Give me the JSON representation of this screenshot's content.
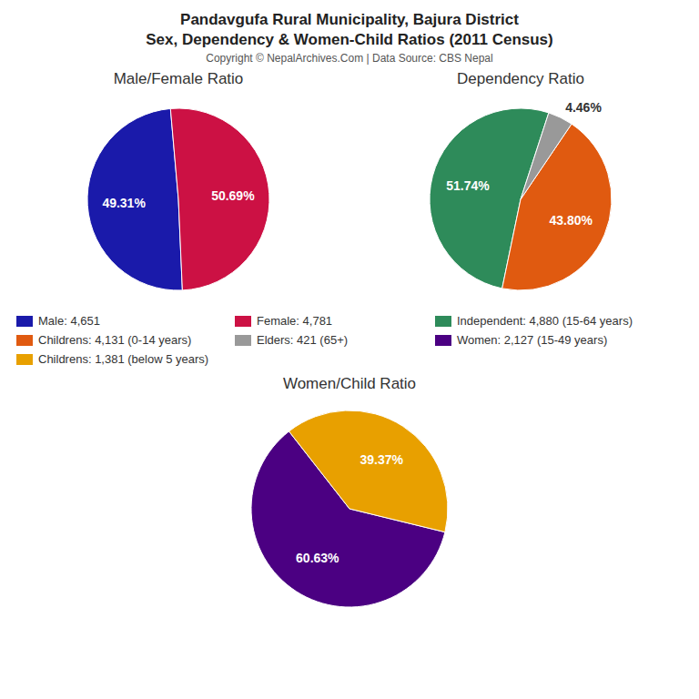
{
  "title": "Pandavgufa Rural Municipality, Bajura District",
  "subtitle": "Sex, Dependency & Women-Child Ratios (2011 Census)",
  "annotations": [
    "Copyright © NepalArchives.Com | Data Source: CBS Nepal"
  ],
  "legend": "center",
  "chart_data": [
    {
      "type": "pie",
      "title": "Male/Female Ratio",
      "categories": [
        "Male: 4,651",
        "Female: 4,781"
      ],
      "values": [
        49.31,
        50.69
      ],
      "value_labels": [
        "49.31%",
        "50.69%"
      ],
      "colors": [
        "#1a1aaa",
        "#cc1144"
      ],
      "data_labels": true
    },
    {
      "type": "pie",
      "title": "Dependency Ratio",
      "categories": [
        "Independent: 4,880 (15-64 years)",
        "Childrens: 4,131 (0-14 years)",
        "Elders: 421 (65+)"
      ],
      "values": [
        51.74,
        43.8,
        4.46
      ],
      "value_labels": [
        "51.74%",
        "43.80%",
        "4.46%"
      ],
      "colors": [
        "#2e8b5a",
        "#e05a10",
        "#999999"
      ],
      "data_labels": true
    },
    {
      "type": "pie",
      "title": "Women/Child Ratio",
      "categories": [
        "Women: 2,127 (15-49 years)",
        "Childrens: 1,381 (below 5 years)"
      ],
      "values": [
        60.63,
        39.37
      ],
      "value_labels": [
        "60.63%",
        "39.37%"
      ],
      "colors": [
        "#4b0082",
        "#e8a000"
      ],
      "data_labels": true
    }
  ]
}
